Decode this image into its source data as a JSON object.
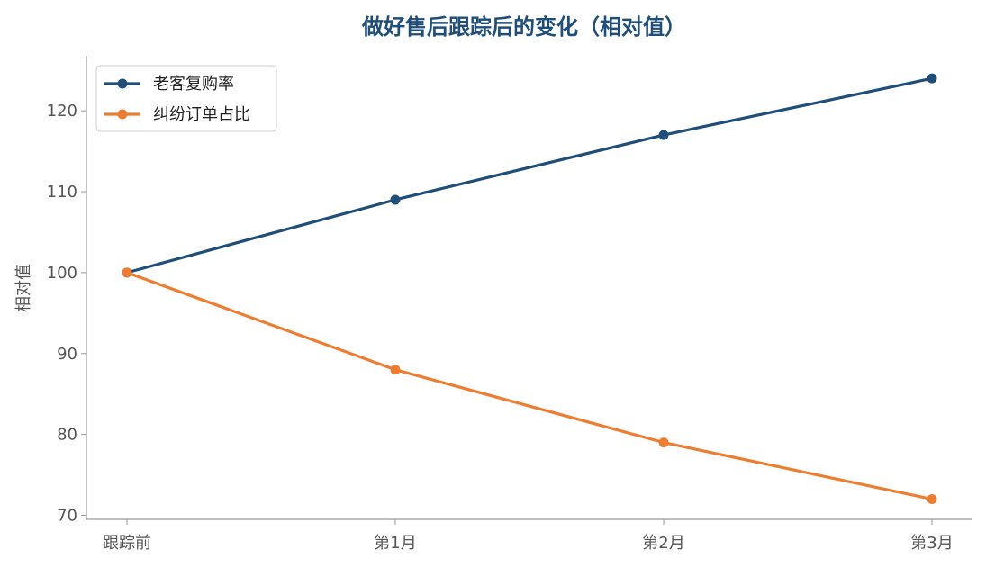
{
  "chart_data": {
    "type": "line",
    "title": "做好售后跟踪后的变化（相对值）",
    "xlabel": "",
    "ylabel": "相对值",
    "categories": [
      "跟踪前",
      "第1月",
      "第2月",
      "第3月"
    ],
    "ylim": [
      69.5,
      126.8
    ],
    "yticks": [
      70,
      80,
      90,
      100,
      110,
      120
    ],
    "grid": false,
    "legend_position": "top-left",
    "series": [
      {
        "name": "老客复购率",
        "values": [
          100,
          109,
          117,
          124
        ],
        "color": "#1f4e79"
      },
      {
        "name": "纠纷订单占比",
        "values": [
          100,
          88,
          79,
          72
        ],
        "color": "#ed7d31"
      }
    ],
    "title_color": "#1f4e79",
    "axis_color": "#999999"
  }
}
